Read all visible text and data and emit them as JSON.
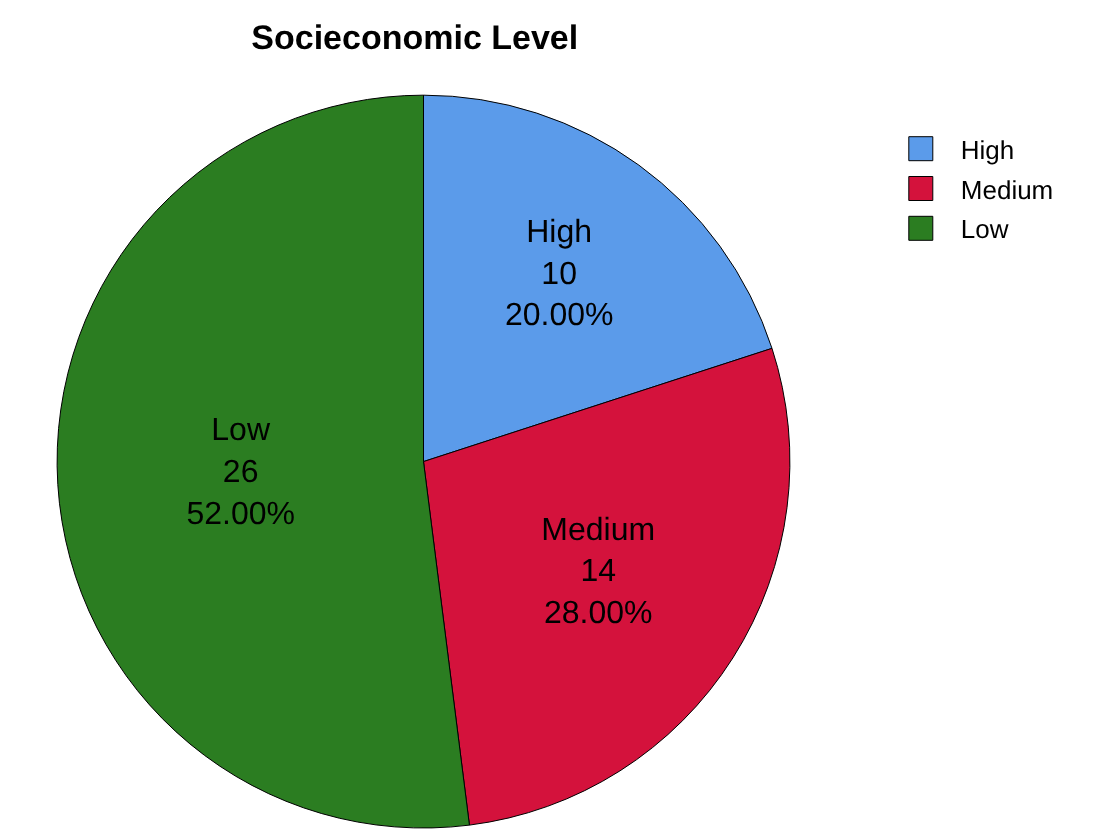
{
  "chart_data": {
    "type": "pie",
    "title": "Socieconomic Level",
    "categories": [
      "High",
      "Medium",
      "Low"
    ],
    "values": [
      10,
      14,
      26
    ],
    "colors": [
      "#5b9bea",
      "#d4123c",
      "#2b7d21"
    ],
    "value_labels": [
      "High\n10\n20.00%",
      "Medium\n14\n28.00%",
      "Low\n26\n52.00%"
    ],
    "legend": "top right"
  }
}
